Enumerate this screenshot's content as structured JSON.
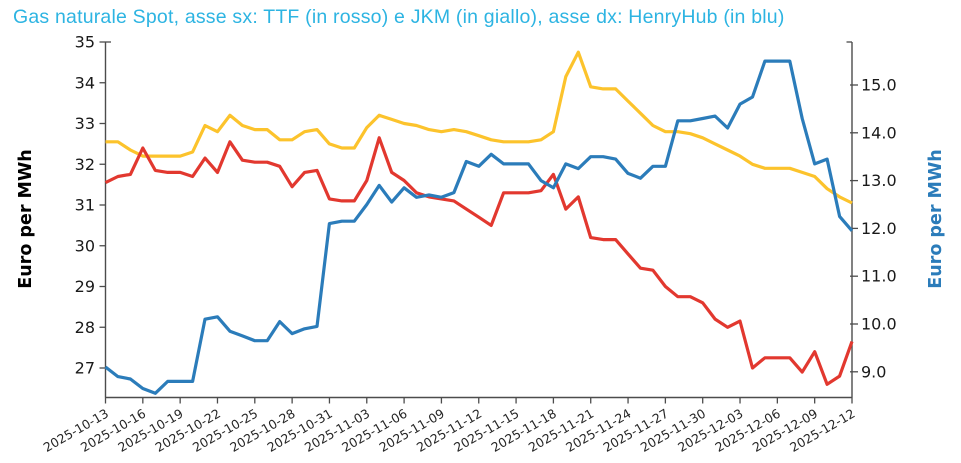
{
  "title": "Gas naturale Spot, asse sx: TTF (in rosso) e JKM (in giallo), asse dx: HenryHub (in blu)",
  "title_color": "#2db4e2",
  "y_axis_left": {
    "label": "Euro per MWh",
    "color": "#1a1a1a",
    "tick_values": [
      27,
      28,
      29,
      30,
      31,
      32,
      33,
      34,
      35
    ]
  },
  "y_axis_right": {
    "label": "Euro per MWh",
    "color": "#2b7cba",
    "tick_labels": [
      "9.0",
      "10.0",
      "11.0",
      "12.0",
      "13.0",
      "14.0",
      "15.0"
    ],
    "tick_values": [
      9,
      10,
      11,
      12,
      13,
      14,
      15
    ]
  },
  "x_axis": {
    "tick_labels": [
      "2025-10-13",
      "2025-10-16",
      "2025-10-19",
      "2025-10-22",
      "2025-10-25",
      "2025-10-28",
      "2025-10-31",
      "2025-11-03",
      "2025-11-06",
      "2025-11-09",
      "2025-11-12",
      "2025-11-15",
      "2025-11-18",
      "2025-11-21",
      "2025-11-24",
      "2025-11-27",
      "2025-11-30",
      "2025-12-03",
      "2025-12-06",
      "2025-12-09",
      "2025-12-12"
    ],
    "tick_every_days": 3
  },
  "chart_data": {
    "type": "line",
    "title": "Gas naturale Spot, asse sx: TTF (in rosso) e JKM (in giallo), asse dx: HenryHub (in blu)",
    "ylabel_left": "Euro per MWh",
    "ylabel_right": "Euro per MWh",
    "ylim_left": [
      26.3,
      35.0
    ],
    "ylim_right": [
      8.46,
      15.7
    ],
    "grid": false,
    "legend": "none (series identified in title)",
    "x": [
      "2025-10-13",
      "2025-10-14",
      "2025-10-15",
      "2025-10-16",
      "2025-10-17",
      "2025-10-18",
      "2025-10-19",
      "2025-10-20",
      "2025-10-21",
      "2025-10-22",
      "2025-10-23",
      "2025-10-24",
      "2025-10-25",
      "2025-10-26",
      "2025-10-27",
      "2025-10-28",
      "2025-10-29",
      "2025-10-30",
      "2025-10-31",
      "2025-11-01",
      "2025-11-02",
      "2025-11-03",
      "2025-11-04",
      "2025-11-05",
      "2025-11-06",
      "2025-11-07",
      "2025-11-08",
      "2025-11-09",
      "2025-11-10",
      "2025-11-11",
      "2025-11-12",
      "2025-11-13",
      "2025-11-14",
      "2025-11-15",
      "2025-11-16",
      "2025-11-17",
      "2025-11-18",
      "2025-11-19",
      "2025-11-20",
      "2025-11-21",
      "2025-11-22",
      "2025-11-23",
      "2025-11-24",
      "2025-11-25",
      "2025-11-26",
      "2025-11-27",
      "2025-11-28",
      "2025-11-29",
      "2025-11-30",
      "2025-12-01",
      "2025-12-02",
      "2025-12-03",
      "2025-12-04",
      "2025-12-05",
      "2025-12-06",
      "2025-12-07",
      "2025-12-08",
      "2025-12-09",
      "2025-12-10",
      "2025-12-11",
      "2025-12-12"
    ],
    "series": [
      {
        "name": "JKM",
        "axis": "left",
        "color": "#fcc32c",
        "values": [
          32.55,
          32.55,
          32.35,
          32.2,
          32.2,
          32.2,
          32.2,
          32.3,
          32.95,
          32.8,
          33.2,
          32.95,
          32.85,
          32.85,
          32.6,
          32.6,
          32.8,
          32.85,
          32.5,
          32.4,
          32.4,
          32.9,
          33.2,
          33.1,
          33.0,
          32.95,
          32.85,
          32.8,
          32.85,
          32.8,
          32.7,
          32.6,
          32.55,
          32.55,
          32.55,
          32.6,
          32.8,
          34.15,
          34.75,
          33.9,
          33.85,
          33.85,
          33.55,
          33.25,
          32.95,
          32.8,
          32.8,
          32.75,
          32.65,
          32.5,
          32.35,
          32.2,
          32.0,
          31.9,
          31.9,
          31.9,
          31.8,
          31.7,
          31.4,
          31.2,
          31.05
        ]
      },
      {
        "name": "TTF",
        "axis": "left",
        "color": "#e2382f",
        "values": [
          31.55,
          31.7,
          31.75,
          32.4,
          31.85,
          31.8,
          31.8,
          31.7,
          32.15,
          31.8,
          32.55,
          32.1,
          32.05,
          32.05,
          31.95,
          31.45,
          31.8,
          31.85,
          31.15,
          31.1,
          31.1,
          31.6,
          32.65,
          31.8,
          31.6,
          31.3,
          31.2,
          31.15,
          31.1,
          30.9,
          30.7,
          30.5,
          31.3,
          31.3,
          31.3,
          31.35,
          31.75,
          30.9,
          31.2,
          30.2,
          30.15,
          30.15,
          29.8,
          29.45,
          29.4,
          29.0,
          28.75,
          28.75,
          28.6,
          28.2,
          28.0,
          28.15,
          27.0,
          27.25,
          27.25,
          27.25,
          26.9,
          27.4,
          26.6,
          26.8,
          27.65
        ]
      },
      {
        "name": "HenryHub",
        "axis": "right",
        "color": "#2b7cba",
        "values": [
          9.1,
          8.9,
          8.85,
          8.65,
          8.55,
          8.8,
          8.8,
          8.8,
          10.1,
          10.15,
          9.85,
          9.75,
          9.65,
          9.65,
          10.05,
          9.8,
          9.9,
          9.95,
          12.1,
          12.15,
          12.15,
          12.5,
          12.9,
          12.55,
          12.85,
          12.65,
          12.7,
          12.65,
          12.75,
          13.4,
          13.3,
          13.55,
          13.35,
          13.35,
          13.35,
          13.0,
          12.85,
          13.35,
          13.25,
          13.5,
          13.5,
          13.45,
          13.15,
          13.05,
          13.3,
          13.3,
          14.25,
          14.25,
          14.3,
          14.35,
          14.1,
          14.6,
          14.75,
          15.5,
          15.5,
          15.5,
          14.3,
          13.35,
          13.45,
          12.25,
          11.95
        ]
      }
    ]
  }
}
